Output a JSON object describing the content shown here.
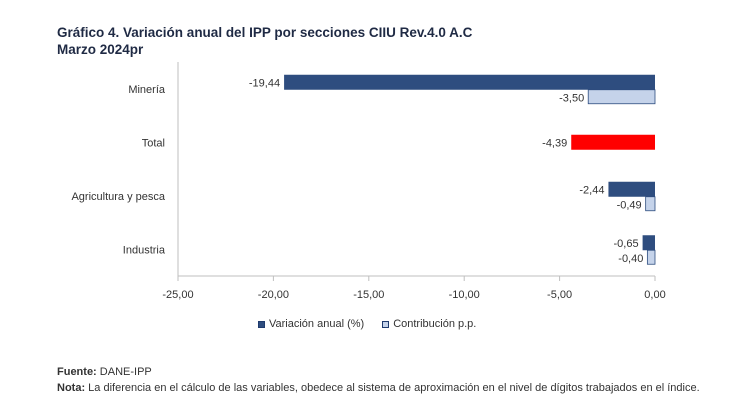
{
  "title": "Gráfico 4. Variación anual del IPP por secciones CIIU Rev.4.0 A.C",
  "subtitle": "Marzo 2024pr",
  "colors": {
    "variacion": "#2e4d7f",
    "contribucion": "#c5d3ea",
    "total": "#ff0000",
    "contribucion_border": "#2e4d7f"
  },
  "chart_data": {
    "type": "bar",
    "orientation": "horizontal",
    "categories": [
      "Minería",
      "Total",
      "Agricultura y pesca",
      "Industria"
    ],
    "series": [
      {
        "name": "Variación anual (%)",
        "values": [
          -19.44,
          -4.39,
          -2.44,
          -0.65
        ],
        "labels": [
          "-19,44",
          "-4,39",
          "-2,44",
          "-0,65"
        ]
      },
      {
        "name": "Contribución p.p.",
        "values": [
          -3.5,
          null,
          -0.49,
          -0.4
        ],
        "labels": [
          "-3,50",
          "",
          "-0,49",
          "-0,40"
        ]
      }
    ],
    "xlim": [
      -25,
      0
    ],
    "xticks": [
      "-25,00",
      "-20,00",
      "-15,00",
      "-10,00",
      "-5,00",
      "0,00"
    ],
    "xtick_values": [
      -25,
      -20,
      -15,
      -10,
      -5,
      0
    ],
    "grid": false,
    "legend_position": "bottom"
  },
  "legend": {
    "variacion": "Variación anual (%)",
    "contribucion": "Contribución p.p."
  },
  "footer": {
    "fuente_label": "Fuente:",
    "fuente_text": " DANE-IPP",
    "nota_label": "Nota:",
    "nota_text": " La diferencia en el cálculo de las variables, obedece al sistema de aproximación en el nivel de dígitos trabajados en el índice."
  }
}
